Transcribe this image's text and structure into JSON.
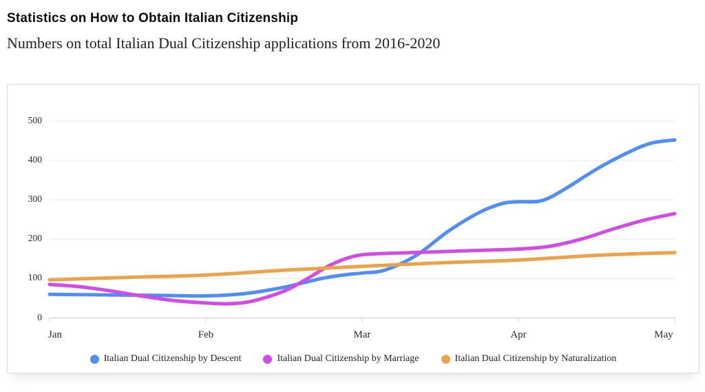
{
  "page": {
    "title": "Statistics on How to Obtain Italian Citizenship",
    "subtitle": "Numbers on total Italian Dual Citizenship applications from 2016-2020"
  },
  "chart_data": {
    "type": "line",
    "title": "Statistics on How to Obtain Italian Citizenship",
    "subtitle": "Numbers on total Italian Dual Citizenship applications from 2016-2020",
    "xlabel": "",
    "ylabel": "",
    "x_categories": [
      "Jan",
      "Feb",
      "Mar",
      "Apr",
      "May"
    ],
    "y_ticks": [
      0,
      100,
      200,
      300,
      400,
      500
    ],
    "ylim": [
      0,
      500
    ],
    "grid": true,
    "legend_position": "bottom",
    "colors": {
      "grid": "#e9e9e9",
      "axis": "#cccccc",
      "tick": "#cccccc"
    },
    "series": [
      {
        "name": "Italian Dual Citizenship by Descent",
        "color": "#4f8ef7",
        "monthly_values": [
          60,
          56,
          114,
          295,
          452
        ],
        "points": [
          [
            0,
            60
          ],
          [
            0.25,
            59
          ],
          [
            0.5,
            58
          ],
          [
            0.75,
            57
          ],
          [
            1,
            56
          ],
          [
            1.25,
            62
          ],
          [
            1.5,
            78
          ],
          [
            1.75,
            101
          ],
          [
            1.9,
            110
          ],
          [
            2,
            114
          ],
          [
            2.15,
            122
          ],
          [
            2.35,
            160
          ],
          [
            2.55,
            220
          ],
          [
            2.75,
            268
          ],
          [
            2.9,
            291
          ],
          [
            3,
            295
          ],
          [
            3.15,
            298
          ],
          [
            3.3,
            328
          ],
          [
            3.5,
            378
          ],
          [
            3.7,
            420
          ],
          [
            3.85,
            444
          ],
          [
            4,
            452
          ]
        ]
      },
      {
        "name": "Italian Dual Citizenship by Marriage",
        "color": "#d04ce4",
        "monthly_values": [
          85,
          38,
          163,
          175,
          265
        ],
        "points": [
          [
            0,
            85
          ],
          [
            0.2,
            79
          ],
          [
            0.4,
            68
          ],
          [
            0.6,
            55
          ],
          [
            0.8,
            44
          ],
          [
            1,
            38
          ],
          [
            1.15,
            36
          ],
          [
            1.3,
            43
          ],
          [
            1.5,
            68
          ],
          [
            1.65,
            100
          ],
          [
            1.8,
            135
          ],
          [
            1.95,
            157
          ],
          [
            2.1,
            163
          ],
          [
            2.4,
            167
          ],
          [
            2.7,
            171
          ],
          [
            3,
            175
          ],
          [
            3.2,
            182
          ],
          [
            3.4,
            200
          ],
          [
            3.6,
            225
          ],
          [
            3.8,
            248
          ],
          [
            4,
            265
          ]
        ]
      },
      {
        "name": "Italian Dual Citizenship by Naturalization",
        "color": "#eba24a",
        "monthly_values": [
          97,
          109,
          131,
          147,
          166
        ],
        "points": [
          [
            0,
            97
          ],
          [
            0.5,
            103
          ],
          [
            1,
            109
          ],
          [
            1.5,
            121
          ],
          [
            2,
            131
          ],
          [
            2.5,
            140
          ],
          [
            3,
            147
          ],
          [
            3.5,
            159
          ],
          [
            4,
            166
          ]
        ]
      }
    ]
  }
}
